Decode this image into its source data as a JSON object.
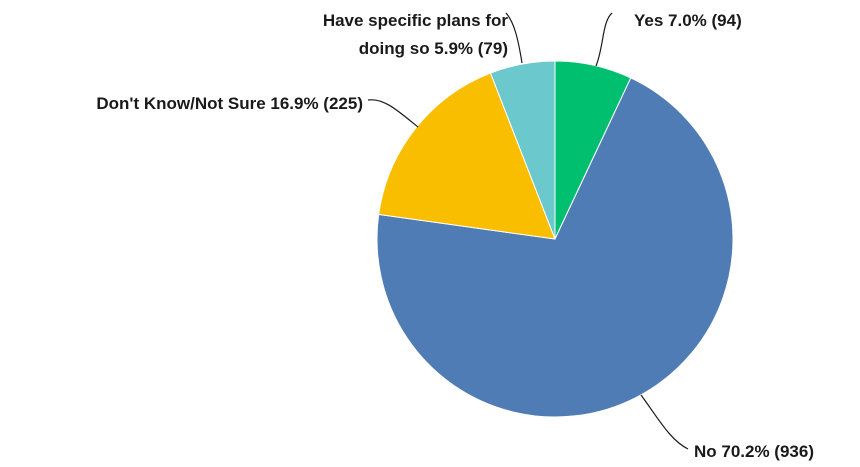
{
  "chart_data": {
    "type": "pie",
    "slices": [
      {
        "label": "Yes",
        "percent": 7.0,
        "count": 94,
        "color": "#00bf6f",
        "text": [
          "Yes 7.0% (94)"
        ]
      },
      {
        "label": "No",
        "percent": 70.2,
        "count": 936,
        "color": "#507cb6",
        "text": [
          "No 70.2% (936)"
        ]
      },
      {
        "label": "Don't Know/Not Sure",
        "percent": 16.9,
        "count": 225,
        "color": "#f9be00",
        "text": [
          "Don't Know/Not Sure 16.9% (225)"
        ]
      },
      {
        "label": "Have specific plans for doing so",
        "percent": 5.9,
        "count": 79,
        "color": "#6bc8cd",
        "text": [
          "Have specific plans for",
          "doing so 5.9% (79)"
        ]
      }
    ],
    "start_angle": "12 o'clock",
    "direction": "clockwise"
  }
}
